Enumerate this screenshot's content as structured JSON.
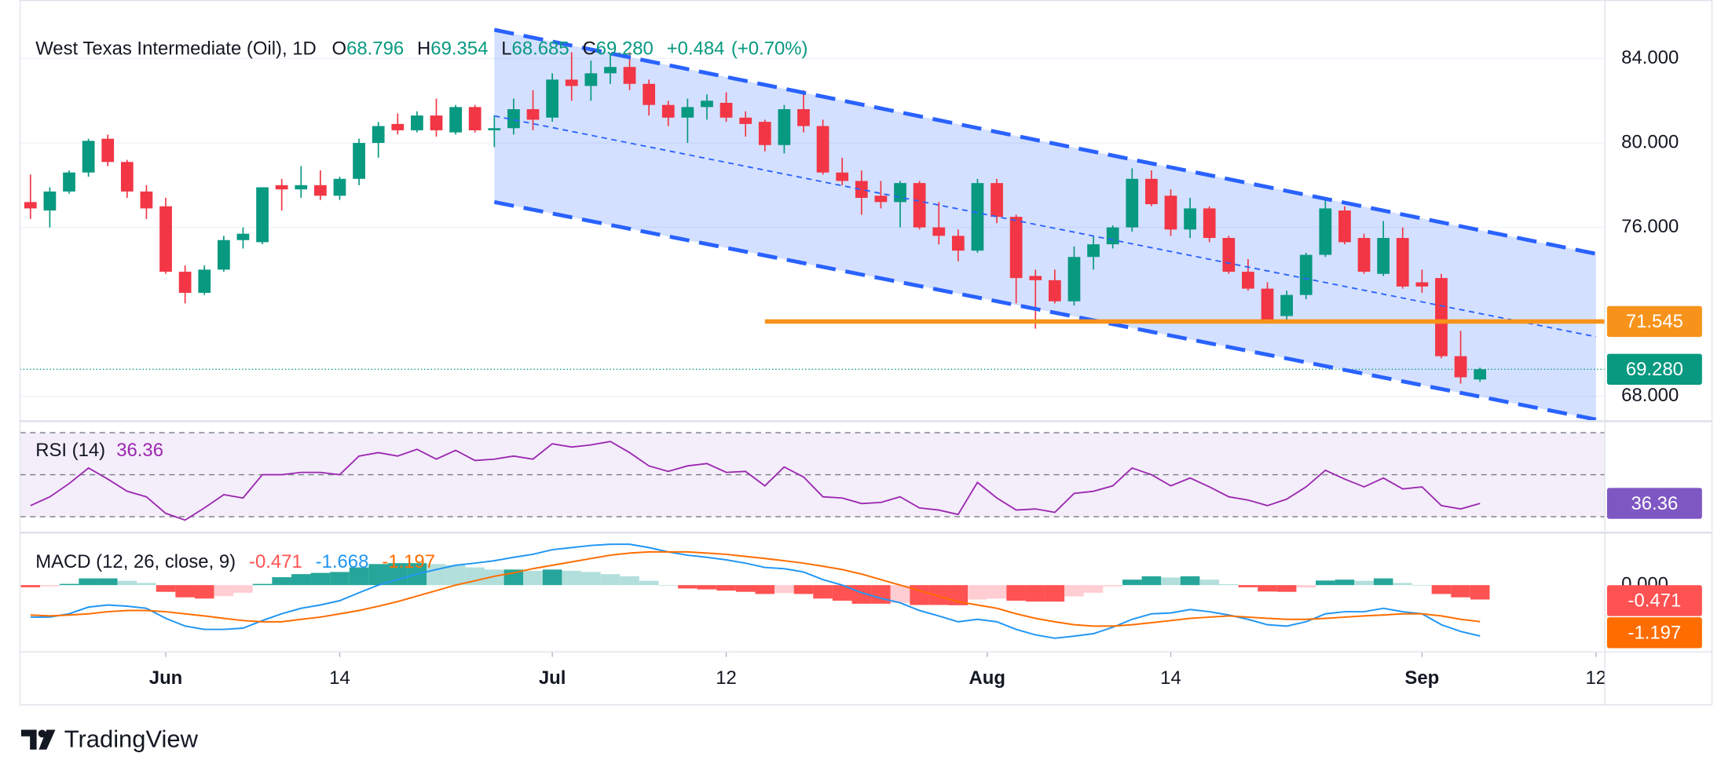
{
  "chart_data": {
    "type": "candlestick",
    "title": "West Texas Intermediate (Oil), 1D",
    "header": [
      {
        "label": "O",
        "value": "68.796"
      },
      {
        "label": "H",
        "value": "69.354"
      },
      {
        "label": "L",
        "value": "68.685"
      },
      {
        "label": "C",
        "value": "69.280"
      }
    ],
    "change": "+0.484",
    "change_pct": "(+0.70%)",
    "up_color": "#089981",
    "down_color": "#f23645",
    "x": [
      -7,
      -6,
      -5,
      -4,
      -3,
      -2,
      -1,
      0,
      1,
      2,
      3,
      4,
      5,
      6,
      7,
      8,
      9,
      10,
      11,
      12,
      13,
      14,
      15,
      16,
      17,
      18,
      19,
      20,
      21,
      22,
      23,
      24,
      25,
      26,
      27,
      28,
      29,
      30,
      31,
      32,
      33,
      34,
      35,
      36,
      37,
      38,
      39,
      40,
      41,
      42,
      43,
      44,
      45,
      46,
      47,
      48,
      49,
      50,
      51,
      52,
      53,
      54,
      55,
      56,
      57,
      58,
      59,
      60,
      61,
      62,
      63,
      64,
      65,
      66,
      67,
      68
    ],
    "ohlc": [
      [
        77.2,
        78.5,
        76.4,
        76.9
      ],
      [
        76.8,
        77.9,
        76.0,
        77.7
      ],
      [
        77.7,
        78.7,
        77.6,
        78.6
      ],
      [
        78.6,
        80.2,
        78.4,
        80.1
      ],
      [
        80.2,
        80.4,
        78.9,
        79.1
      ],
      [
        79.1,
        79.2,
        77.4,
        77.7
      ],
      [
        77.7,
        78.0,
        76.4,
        76.9
      ],
      [
        77.0,
        77.4,
        73.8,
        73.9
      ],
      [
        73.9,
        74.2,
        72.4,
        72.9
      ],
      [
        72.9,
        74.2,
        72.8,
        74.0
      ],
      [
        74.0,
        75.6,
        73.9,
        75.4
      ],
      [
        75.4,
        76.0,
        75.0,
        75.7
      ],
      [
        75.3,
        77.9,
        75.2,
        77.9
      ],
      [
        78.0,
        78.3,
        76.8,
        77.8
      ],
      [
        77.8,
        78.9,
        77.4,
        78.0
      ],
      [
        78.0,
        78.7,
        77.3,
        77.5
      ],
      [
        77.5,
        78.4,
        77.3,
        78.3
      ],
      [
        78.3,
        80.2,
        78.0,
        80.0
      ],
      [
        80.0,
        81.0,
        79.3,
        80.8
      ],
      [
        80.9,
        81.4,
        80.4,
        80.6
      ],
      [
        80.6,
        81.5,
        80.5,
        81.3
      ],
      [
        81.3,
        82.1,
        80.3,
        80.6
      ],
      [
        80.5,
        81.8,
        80.4,
        81.7
      ],
      [
        81.7,
        81.8,
        80.5,
        80.6
      ],
      [
        80.6,
        81.3,
        79.8,
        80.7
      ],
      [
        80.7,
        82.1,
        80.4,
        81.6
      ],
      [
        81.6,
        82.5,
        80.6,
        81.1
      ],
      [
        81.2,
        83.3,
        81.0,
        83.0
      ],
      [
        83.0,
        84.3,
        82.0,
        82.7
      ],
      [
        82.7,
        83.9,
        82.0,
        83.3
      ],
      [
        83.3,
        84.2,
        82.8,
        83.6
      ],
      [
        83.6,
        84.3,
        82.5,
        82.8
      ],
      [
        82.8,
        83.0,
        81.3,
        81.8
      ],
      [
        81.8,
        82.0,
        80.8,
        81.2
      ],
      [
        81.2,
        82.1,
        80.0,
        81.7
      ],
      [
        81.7,
        82.3,
        81.1,
        82.0
      ],
      [
        81.9,
        82.4,
        81.0,
        81.2
      ],
      [
        81.2,
        81.5,
        80.3,
        80.9
      ],
      [
        81.0,
        81.1,
        79.6,
        79.9
      ],
      [
        79.9,
        81.8,
        79.5,
        81.6
      ],
      [
        81.6,
        82.5,
        80.5,
        80.8
      ],
      [
        80.8,
        81.1,
        78.5,
        78.6
      ],
      [
        78.6,
        79.3,
        78.0,
        78.2
      ],
      [
        78.2,
        78.7,
        76.6,
        77.4
      ],
      [
        77.5,
        78.2,
        76.9,
        77.2
      ],
      [
        77.2,
        78.2,
        76.0,
        78.1
      ],
      [
        78.1,
        78.2,
        75.9,
        76.0
      ],
      [
        76.0,
        77.2,
        75.2,
        75.6
      ],
      [
        75.6,
        75.9,
        74.4,
        74.9
      ],
      [
        74.9,
        78.3,
        74.8,
        78.1
      ],
      [
        78.1,
        78.3,
        76.2,
        76.5
      ],
      [
        76.5,
        76.6,
        72.4,
        73.6
      ],
      [
        73.7,
        74.0,
        71.2,
        73.5
      ],
      [
        73.5,
        74.0,
        72.4,
        72.5
      ],
      [
        72.5,
        75.1,
        72.3,
        74.6
      ],
      [
        74.6,
        75.6,
        74.0,
        75.2
      ],
      [
        75.2,
        76.1,
        75.0,
        76.0
      ],
      [
        76.0,
        78.8,
        75.8,
        78.3
      ],
      [
        78.3,
        78.7,
        77.0,
        77.1
      ],
      [
        77.5,
        77.8,
        75.6,
        75.9
      ],
      [
        75.9,
        77.4,
        75.5,
        76.9
      ],
      [
        76.9,
        77.0,
        75.3,
        75.5
      ],
      [
        75.5,
        75.6,
        73.8,
        73.9
      ],
      [
        73.9,
        74.5,
        73.0,
        73.1
      ],
      [
        73.1,
        73.4,
        71.5,
        71.6
      ],
      [
        71.8,
        73.0,
        71.6,
        72.8
      ],
      [
        72.8,
        74.8,
        72.6,
        74.7
      ],
      [
        74.7,
        77.4,
        74.6,
        76.9
      ],
      [
        76.8,
        77.0,
        75.2,
        75.3
      ],
      [
        75.5,
        75.7,
        73.8,
        73.9
      ],
      [
        73.8,
        76.3,
        73.7,
        75.5
      ],
      [
        75.5,
        76.0,
        73.1,
        73.2
      ],
      [
        73.4,
        74.0,
        72.9,
        73.2
      ],
      [
        73.6,
        73.8,
        69.8,
        69.9
      ],
      [
        69.9,
        71.1,
        68.6,
        68.9
      ],
      [
        68.796,
        69.354,
        68.685,
        69.28
      ]
    ],
    "xlim": [
      -7.54,
      74.46
    ],
    "xticks": [
      {
        "value": 0,
        "label": "Jun"
      },
      {
        "value": 9,
        "label": "14"
      },
      {
        "value": 20,
        "label": "Jul"
      },
      {
        "value": 29,
        "label": "12"
      },
      {
        "value": 42.5,
        "label": "Aug"
      },
      {
        "value": 52,
        "label": "14"
      },
      {
        "value": 65,
        "label": "Sep"
      },
      {
        "value": 74,
        "label": "12"
      }
    ],
    "ylim": [
      66.9,
      85.83
    ],
    "yticks": [
      {
        "value": 68,
        "label": "68.000"
      },
      {
        "value": 76,
        "label": "76.000"
      },
      {
        "value": 80,
        "label": "80.000"
      },
      {
        "value": 84,
        "label": "84.000"
      }
    ],
    "grid": true,
    "channel": {
      "color": "#2962ff",
      "x": [
        17,
        74
      ],
      "upper": [
        85.36,
        74.75
      ],
      "middle": [
        81.28,
        70.82
      ],
      "lower": [
        77.2,
        66.9
      ]
    },
    "hline": {
      "value": 71.545,
      "label": "71.545",
      "from": 31,
      "color": "#f7931a"
    },
    "last_price": {
      "value": 69.28,
      "label": "69.280",
      "color": "#089981"
    },
    "rsi": {
      "title": "RSI (14)",
      "color": "#9c27b0",
      "label_color": "#7e57c2",
      "band_fill": "#f3eefa",
      "ylim": [
        23.2,
        74.7
      ],
      "bands": [
        30,
        50,
        70
      ],
      "values": [
        35.3,
        39.5,
        45.8,
        53.2,
        47.9,
        42.1,
        39.5,
        31.6,
        28.4,
        34.2,
        40.5,
        38.9,
        50,
        50,
        51.1,
        51.1,
        50,
        58.9,
        60.5,
        58.9,
        62.1,
        57.4,
        61.6,
        56.8,
        57.4,
        58.9,
        57.4,
        64.7,
        63.2,
        64.2,
        65.8,
        60.5,
        54.2,
        51.6,
        54.2,
        55.3,
        51.1,
        51.6,
        44.7,
        53.7,
        48.9,
        39.5,
        38.9,
        36.3,
        36.8,
        39.5,
        34.2,
        33.2,
        31.1,
        46.3,
        38.9,
        33.2,
        33.7,
        32.1,
        41.1,
        42.1,
        44.7,
        53.2,
        50,
        44.7,
        48.4,
        44.2,
        39.5,
        37.9,
        35.3,
        38.4,
        44.2,
        52.1,
        47.9,
        44.2,
        48.4,
        43.2,
        44.2,
        35.3,
        33.7,
        36.36
      ]
    },
    "macd": {
      "title": "MACD (12, 26, close, 9)",
      "ylim": [
        -2.17,
        1.7
      ],
      "yticks": [
        {
          "value": 0,
          "label": "0.000"
        }
      ],
      "histogram": {
        "colors": {
          "up_rising": "#26a69a",
          "up_falling": "#b2dfdb",
          "down_falling": "#ff5252",
          "down_rising": "#ffcdd2"
        },
        "values": [
          -0.07,
          -0.04,
          0.04,
          0.22,
          0.22,
          0.14,
          0.07,
          -0.22,
          -0.4,
          -0.44,
          -0.36,
          -0.25,
          0.04,
          0.26,
          0.36,
          0.4,
          0.43,
          0.58,
          0.69,
          0.72,
          0.72,
          0.69,
          0.65,
          0.58,
          0.51,
          0.51,
          0.47,
          0.51,
          0.47,
          0.43,
          0.36,
          0.29,
          0.14,
          0,
          -0.11,
          -0.14,
          -0.18,
          -0.22,
          -0.29,
          -0.26,
          -0.29,
          -0.44,
          -0.51,
          -0.61,
          -0.61,
          -0.58,
          -0.65,
          -0.65,
          -0.66,
          -0.47,
          -0.44,
          -0.51,
          -0.54,
          -0.54,
          -0.37,
          -0.25,
          -0.04,
          0.18,
          0.29,
          0.25,
          0.29,
          0.18,
          0.03,
          -0.07,
          -0.21,
          -0.22,
          -0.08,
          0.15,
          0.18,
          0.14,
          0.22,
          0.07,
          0,
          -0.29,
          -0.4,
          -0.471
        ]
      },
      "line": {
        "color": "#2196f3",
        "values": [
          -1.05,
          -1.05,
          -0.94,
          -0.72,
          -0.65,
          -0.69,
          -0.76,
          -1.09,
          -1.34,
          -1.45,
          -1.45,
          -1.41,
          -1.16,
          -0.94,
          -0.76,
          -0.65,
          -0.51,
          -0.25,
          0,
          0.18,
          0.36,
          0.51,
          0.65,
          0.72,
          0.8,
          0.91,
          1.01,
          1.16,
          1.23,
          1.3,
          1.34,
          1.34,
          1.23,
          1.09,
          0.98,
          0.91,
          0.83,
          0.72,
          0.58,
          0.54,
          0.43,
          0.18,
          0,
          -0.25,
          -0.43,
          -0.58,
          -0.83,
          -1.01,
          -1.2,
          -1.12,
          -1.2,
          -1.45,
          -1.63,
          -1.74,
          -1.67,
          -1.59,
          -1.38,
          -1.12,
          -0.94,
          -0.91,
          -0.8,
          -0.87,
          -0.98,
          -1.12,
          -1.3,
          -1.34,
          -1.2,
          -0.94,
          -0.87,
          -0.87,
          -0.76,
          -0.87,
          -0.94,
          -1.3,
          -1.52,
          -1.668
        ]
      },
      "signal": {
        "color": "#ff6d00",
        "values": [
          -0.98,
          -1.01,
          -0.98,
          -0.94,
          -0.87,
          -0.83,
          -0.83,
          -0.87,
          -0.94,
          -1.01,
          -1.09,
          -1.16,
          -1.2,
          -1.2,
          -1.12,
          -1.05,
          -0.94,
          -0.83,
          -0.69,
          -0.54,
          -0.36,
          -0.18,
          0,
          0.14,
          0.29,
          0.4,
          0.54,
          0.65,
          0.76,
          0.87,
          0.98,
          1.05,
          1.09,
          1.09,
          1.09,
          1.05,
          1.01,
          0.94,
          0.87,
          0.8,
          0.72,
          0.62,
          0.51,
          0.36,
          0.18,
          0,
          -0.18,
          -0.36,
          -0.54,
          -0.65,
          -0.76,
          -0.94,
          -1.09,
          -1.2,
          -1.3,
          -1.34,
          -1.34,
          -1.3,
          -1.23,
          -1.16,
          -1.09,
          -1.05,
          -1.01,
          -1.05,
          -1.09,
          -1.12,
          -1.12,
          -1.09,
          -1.05,
          -1.01,
          -0.98,
          -0.94,
          -0.94,
          -1.01,
          -1.12,
          -1.197
        ]
      }
    },
    "brand": "TradingView"
  }
}
